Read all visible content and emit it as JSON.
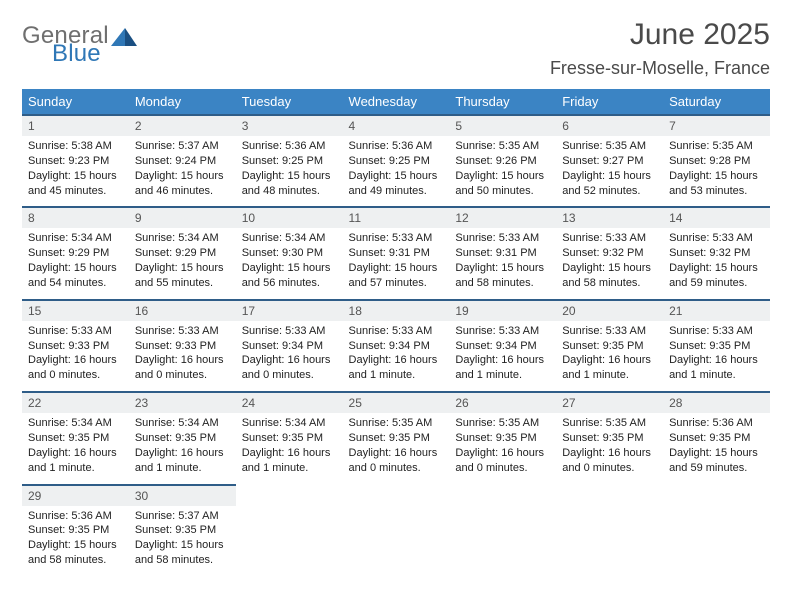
{
  "logo": {
    "word1": "General",
    "word2": "Blue"
  },
  "title": "June 2025",
  "location": "Fresse-sur-Moselle, France",
  "colors": {
    "header_bg": "#3b84c4",
    "week_border": "#2f5d88",
    "daynum_bg": "#eef0f1",
    "logo_gray": "#6f6f6f",
    "logo_blue": "#2f77b6"
  },
  "weekdays": [
    "Sunday",
    "Monday",
    "Tuesday",
    "Wednesday",
    "Thursday",
    "Friday",
    "Saturday"
  ],
  "weeks": [
    [
      {
        "n": "1",
        "sr": "5:38 AM",
        "ss": "9:23 PM",
        "dl": "15 hours and 45 minutes."
      },
      {
        "n": "2",
        "sr": "5:37 AM",
        "ss": "9:24 PM",
        "dl": "15 hours and 46 minutes."
      },
      {
        "n": "3",
        "sr": "5:36 AM",
        "ss": "9:25 PM",
        "dl": "15 hours and 48 minutes."
      },
      {
        "n": "4",
        "sr": "5:36 AM",
        "ss": "9:25 PM",
        "dl": "15 hours and 49 minutes."
      },
      {
        "n": "5",
        "sr": "5:35 AM",
        "ss": "9:26 PM",
        "dl": "15 hours and 50 minutes."
      },
      {
        "n": "6",
        "sr": "5:35 AM",
        "ss": "9:27 PM",
        "dl": "15 hours and 52 minutes."
      },
      {
        "n": "7",
        "sr": "5:35 AM",
        "ss": "9:28 PM",
        "dl": "15 hours and 53 minutes."
      }
    ],
    [
      {
        "n": "8",
        "sr": "5:34 AM",
        "ss": "9:29 PM",
        "dl": "15 hours and 54 minutes."
      },
      {
        "n": "9",
        "sr": "5:34 AM",
        "ss": "9:29 PM",
        "dl": "15 hours and 55 minutes."
      },
      {
        "n": "10",
        "sr": "5:34 AM",
        "ss": "9:30 PM",
        "dl": "15 hours and 56 minutes."
      },
      {
        "n": "11",
        "sr": "5:33 AM",
        "ss": "9:31 PM",
        "dl": "15 hours and 57 minutes."
      },
      {
        "n": "12",
        "sr": "5:33 AM",
        "ss": "9:31 PM",
        "dl": "15 hours and 58 minutes."
      },
      {
        "n": "13",
        "sr": "5:33 AM",
        "ss": "9:32 PM",
        "dl": "15 hours and 58 minutes."
      },
      {
        "n": "14",
        "sr": "5:33 AM",
        "ss": "9:32 PM",
        "dl": "15 hours and 59 minutes."
      }
    ],
    [
      {
        "n": "15",
        "sr": "5:33 AM",
        "ss": "9:33 PM",
        "dl": "16 hours and 0 minutes."
      },
      {
        "n": "16",
        "sr": "5:33 AM",
        "ss": "9:33 PM",
        "dl": "16 hours and 0 minutes."
      },
      {
        "n": "17",
        "sr": "5:33 AM",
        "ss": "9:34 PM",
        "dl": "16 hours and 0 minutes."
      },
      {
        "n": "18",
        "sr": "5:33 AM",
        "ss": "9:34 PM",
        "dl": "16 hours and 1 minute."
      },
      {
        "n": "19",
        "sr": "5:33 AM",
        "ss": "9:34 PM",
        "dl": "16 hours and 1 minute."
      },
      {
        "n": "20",
        "sr": "5:33 AM",
        "ss": "9:35 PM",
        "dl": "16 hours and 1 minute."
      },
      {
        "n": "21",
        "sr": "5:33 AM",
        "ss": "9:35 PM",
        "dl": "16 hours and 1 minute."
      }
    ],
    [
      {
        "n": "22",
        "sr": "5:34 AM",
        "ss": "9:35 PM",
        "dl": "16 hours and 1 minute."
      },
      {
        "n": "23",
        "sr": "5:34 AM",
        "ss": "9:35 PM",
        "dl": "16 hours and 1 minute."
      },
      {
        "n": "24",
        "sr": "5:34 AM",
        "ss": "9:35 PM",
        "dl": "16 hours and 1 minute."
      },
      {
        "n": "25",
        "sr": "5:35 AM",
        "ss": "9:35 PM",
        "dl": "16 hours and 0 minutes."
      },
      {
        "n": "26",
        "sr": "5:35 AM",
        "ss": "9:35 PM",
        "dl": "16 hours and 0 minutes."
      },
      {
        "n": "27",
        "sr": "5:35 AM",
        "ss": "9:35 PM",
        "dl": "16 hours and 0 minutes."
      },
      {
        "n": "28",
        "sr": "5:36 AM",
        "ss": "9:35 PM",
        "dl": "15 hours and 59 minutes."
      }
    ],
    [
      {
        "n": "29",
        "sr": "5:36 AM",
        "ss": "9:35 PM",
        "dl": "15 hours and 58 minutes."
      },
      {
        "n": "30",
        "sr": "5:37 AM",
        "ss": "9:35 PM",
        "dl": "15 hours and 58 minutes."
      },
      null,
      null,
      null,
      null,
      null
    ]
  ],
  "labels": {
    "sunrise": "Sunrise: ",
    "sunset": "Sunset: ",
    "daylight": "Daylight: "
  }
}
